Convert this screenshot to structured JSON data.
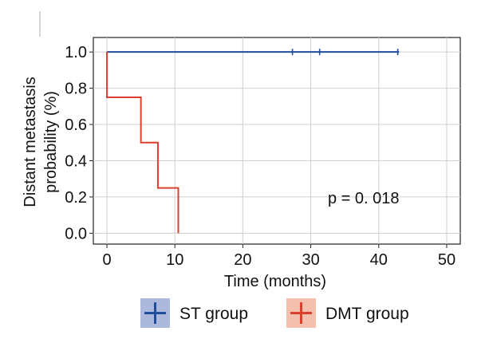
{
  "chart_data": {
    "type": "line",
    "xlabel": "Time (months)",
    "ylabel_lines": [
      "Distant metastasis",
      "probability (%)"
    ],
    "xlim": [
      -2,
      52
    ],
    "ylim": [
      -0.06,
      1.08
    ],
    "xticks": [
      0,
      10,
      20,
      30,
      40,
      50
    ],
    "yticks": [
      0.0,
      0.2,
      0.4,
      0.6,
      0.8,
      1.0
    ],
    "xtick_labels": [
      "0",
      "10",
      "20",
      "30",
      "40",
      "50"
    ],
    "ytick_labels": [
      "0.0",
      "0.2",
      "0.4",
      "0.6",
      "0.8",
      "1.0"
    ],
    "grid": true,
    "legend_position": "bottom-center",
    "annotation": "p = 0. 018",
    "series": [
      {
        "name": "ST group",
        "color": "#1f4e9c",
        "legend_bg": "#adb9dc",
        "steps": [
          [
            0,
            1.0
          ],
          [
            43,
            1.0
          ]
        ],
        "censored": [
          [
            27.3,
            1.0
          ],
          [
            31.3,
            1.0
          ],
          [
            42.8,
            1.0
          ]
        ]
      },
      {
        "name": "DMT group",
        "color": "#d9412e",
        "legend_bg": "#f5bfae",
        "steps": [
          [
            0,
            1.0
          ],
          [
            0,
            0.75
          ],
          [
            5,
            0.75
          ],
          [
            5,
            0.5
          ],
          [
            7.5,
            0.5
          ],
          [
            7.5,
            0.25
          ],
          [
            10.5,
            0.25
          ],
          [
            10.5,
            0.0
          ]
        ],
        "censored": []
      }
    ]
  }
}
